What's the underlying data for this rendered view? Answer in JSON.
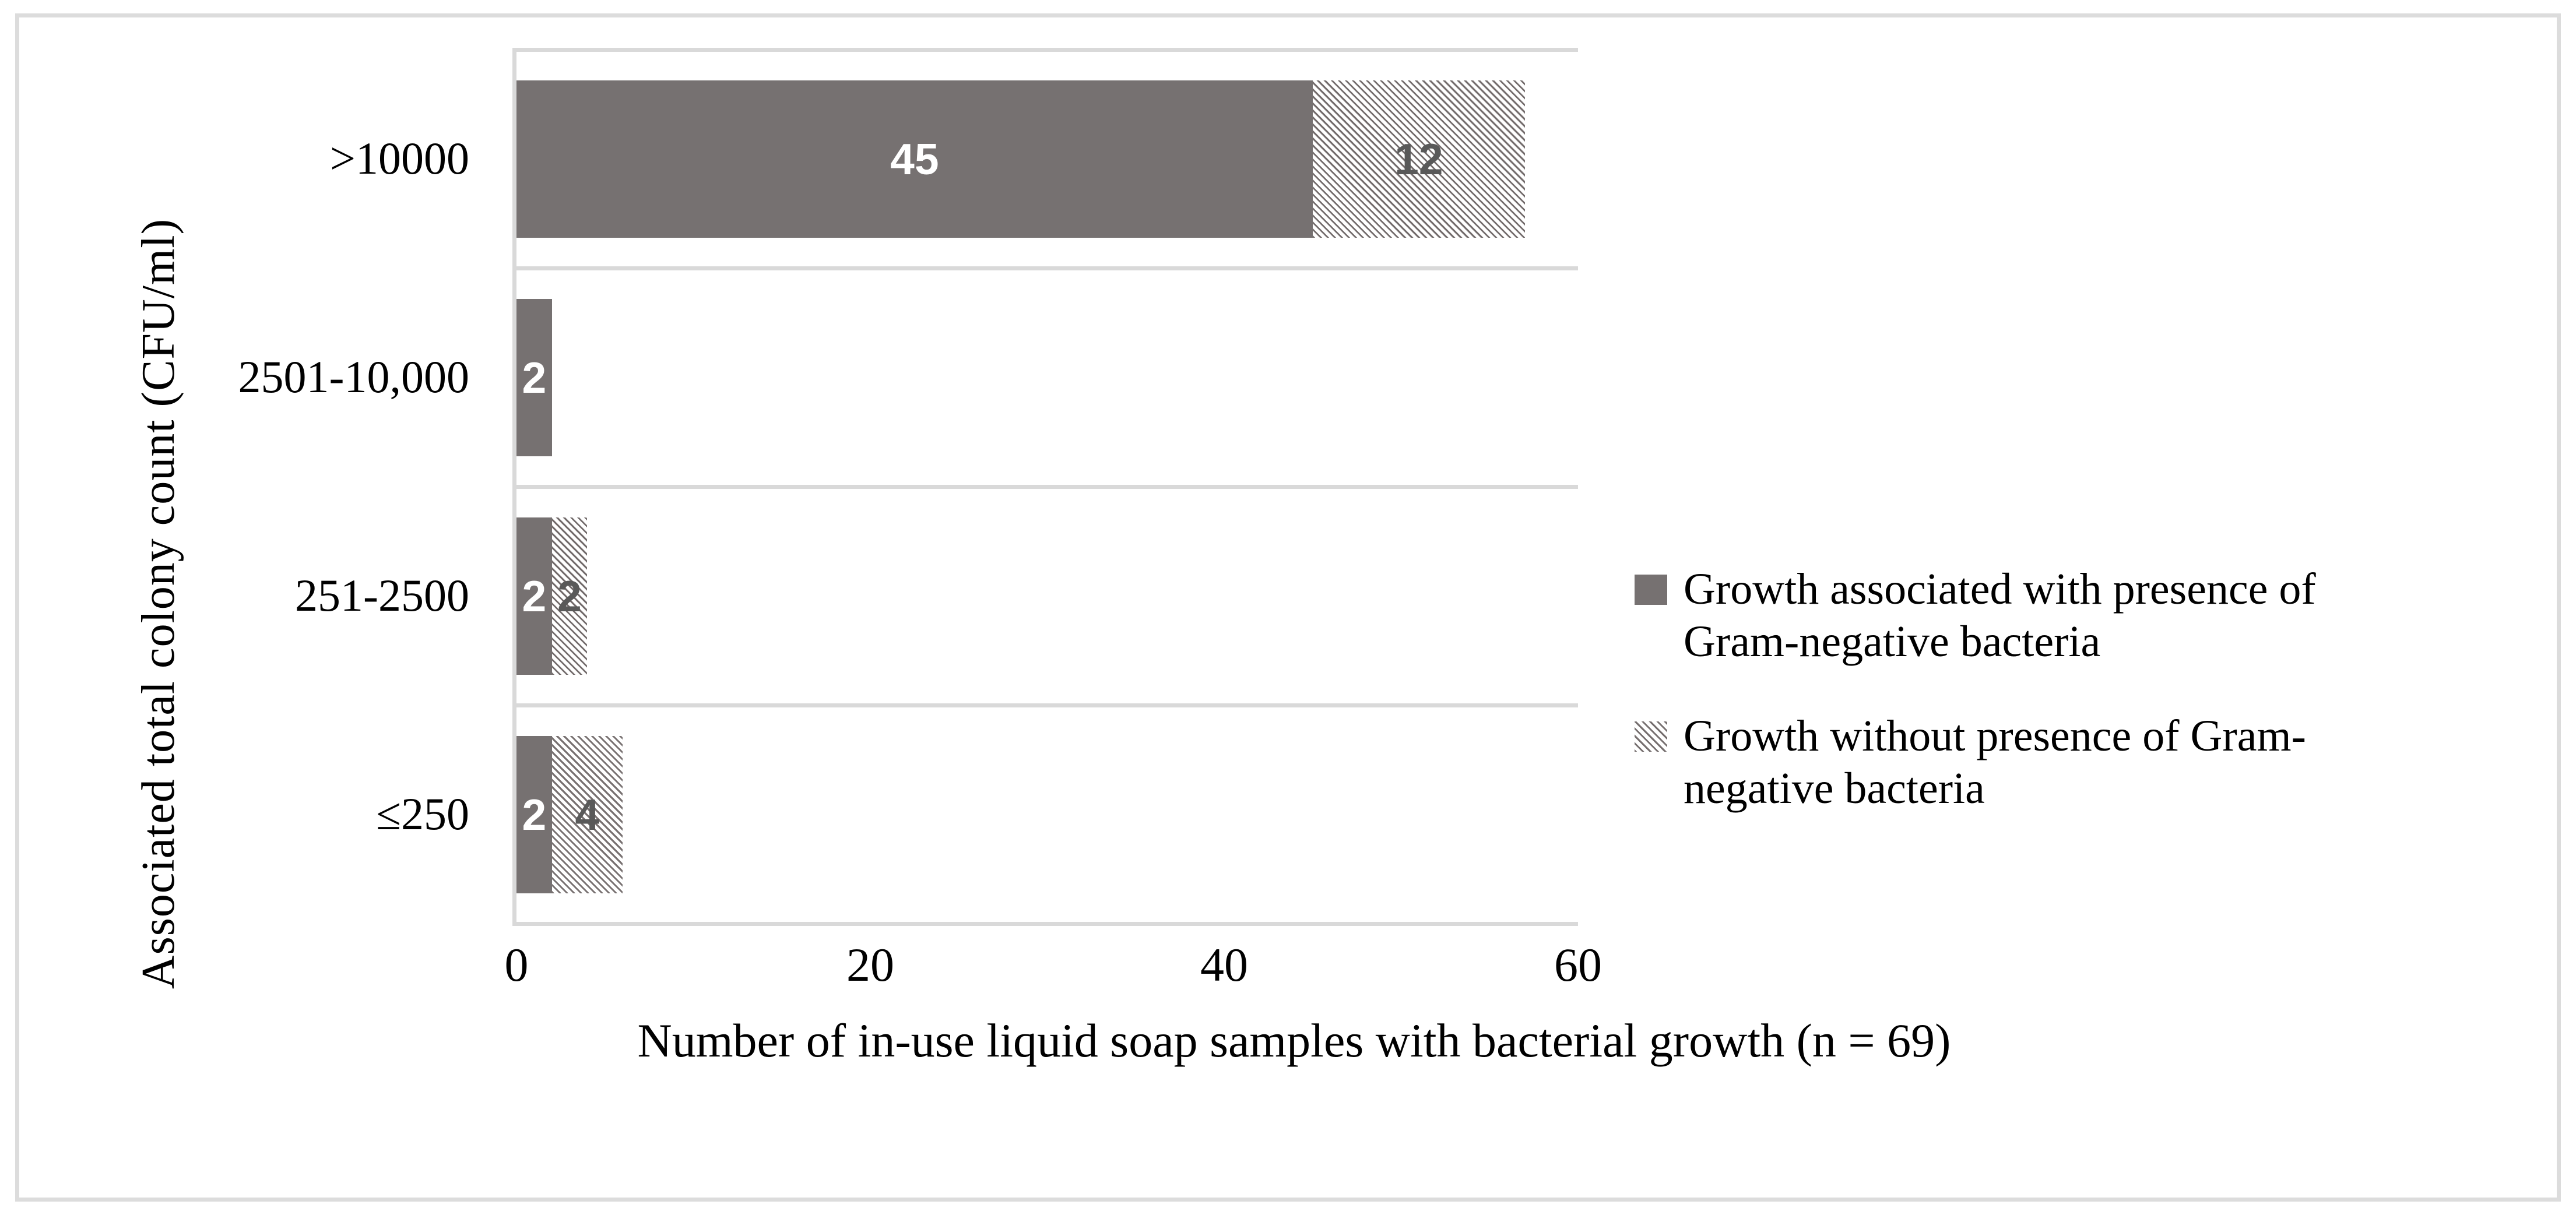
{
  "figure": {
    "background": "#FFFFFF",
    "border_color": "#DCDCDC"
  },
  "colors": {
    "bar_solid": "#767171",
    "hatch_line": "#766F6F",
    "label_on_solid": "#FFFFFF",
    "label_on_hatch": "#595959",
    "gridline": "#D9D9D9",
    "text": "#000000"
  },
  "chart_data": {
    "type": "bar",
    "orientation": "horizontal",
    "stacked": true,
    "title": "",
    "xlabel": "Number of in-use liquid soap samples with bacterial growth (n = 69)",
    "ylabel": "Associated total colony count (CFU/ml)",
    "categories": [
      ">10000",
      "2501-10,000",
      "251-2500",
      "≤250"
    ],
    "series": [
      {
        "name": "Growth associated with presence of Gram-negative bacteria",
        "style": "solid",
        "values": [
          45,
          2,
          2,
          2
        ]
      },
      {
        "name": "Growth without presence of Gram-negative bacteria",
        "style": "diagonal-hatch",
        "values": [
          12,
          0,
          2,
          4
        ]
      }
    ],
    "x_ticks": [
      "0",
      "20",
      "40",
      "60"
    ],
    "xlim": [
      0,
      60
    ],
    "grid": "category-band-separators-only",
    "legend_position": "right"
  },
  "legend": {
    "items": [
      {
        "label": "Growth associated with presence of Gram-negative bacteria",
        "swatch": "solid-gray-square"
      },
      {
        "label": "Growth without presence of Gram-negative bacteria",
        "swatch": "diagonal-hatch-square"
      }
    ]
  }
}
